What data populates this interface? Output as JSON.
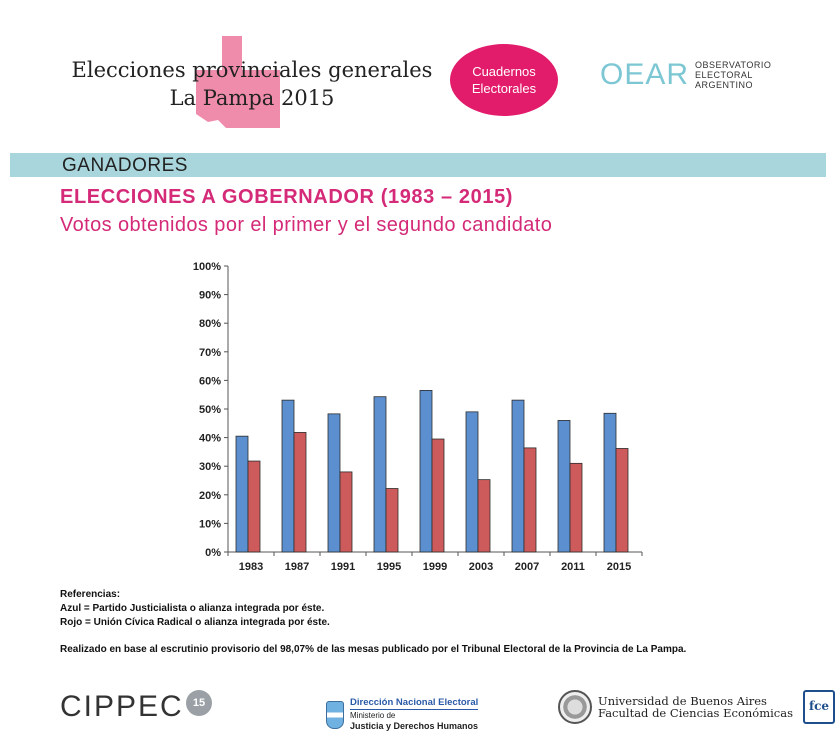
{
  "header": {
    "title_line1": "Elecciones provinciales generales",
    "title_line2": "La Pampa 2015",
    "badge_line1": "Cuadernos",
    "badge_line2": "Electorales",
    "oear_mark": "OEAR",
    "oear_line1": "OBSERVATORIO",
    "oear_line2": "ELECTORAL",
    "oear_line3": "ARGENTINO"
  },
  "section": {
    "band_label": "GANADORES"
  },
  "headline": {
    "title": "ELECCIONES A GOBERNADOR (1983 – 2015)",
    "subtitle": "Votos obtenidos por el primer y el segundo candidato"
  },
  "chart_data": {
    "type": "bar",
    "categories": [
      "1983",
      "1987",
      "1991",
      "1995",
      "1999",
      "2003",
      "2007",
      "2011",
      "2015"
    ],
    "series": [
      {
        "name": "Partido Justicialista",
        "color": "#5b8fcf",
        "values": [
          40.5,
          53.1,
          48.3,
          54.3,
          56.5,
          49,
          53.1,
          46,
          48.5
        ]
      },
      {
        "name": "Unión Cívica Radical",
        "color": "#cd5b5b",
        "values": [
          31.8,
          41.8,
          28,
          22.2,
          39.5,
          25.3,
          36.4,
          31,
          36.2
        ]
      }
    ],
    "yticks": [
      "0%",
      "10%",
      "20%",
      "30%",
      "40%",
      "50%",
      "60%",
      "70%",
      "80%",
      "90%",
      "100%"
    ],
    "ylim": [
      0,
      100
    ],
    "title": "",
    "xlabel": "",
    "ylabel": ""
  },
  "references": {
    "heading": "Referencias:",
    "blue": "Azul = Partido Justicialista o alianza integrada por éste.",
    "red": "Rojo = Unión Cívica Radical o alianza integrada por éste."
  },
  "note": "Realizado en base al escrutinio provisorio del 98,07% de las mesas publicado por el Tribunal Electoral de la Provincia de La Pampa.",
  "footer": {
    "cippec": "CIPPEC",
    "cippec_badge": "15",
    "dne_line1": "Dirección Nacional Electoral",
    "dne_line2": "Ministerio de",
    "dne_line3": "Justicia y Derechos Humanos",
    "uba_line1": "Universidad de Buenos Aires",
    "uba_line2": "Facultad de Ciencias Económicas",
    "fce": "fce"
  }
}
